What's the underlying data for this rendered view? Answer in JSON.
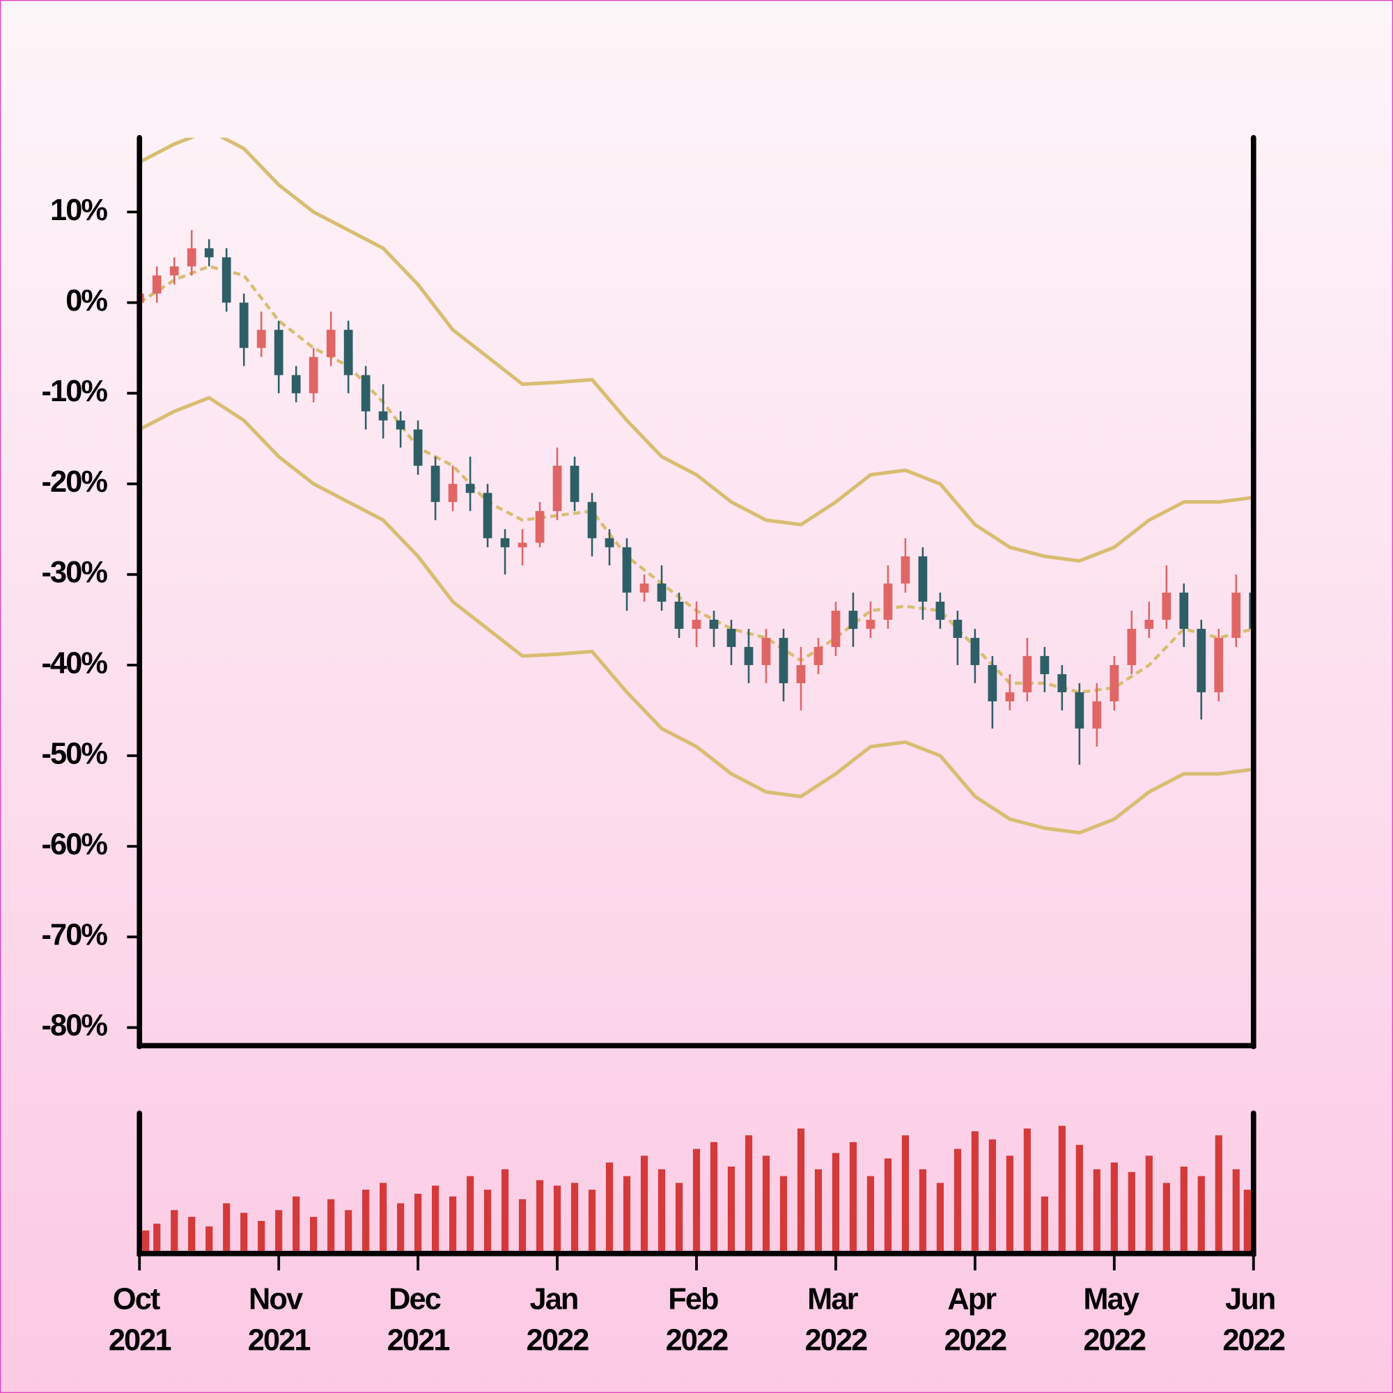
{
  "chart_data": {
    "type": "candlestick",
    "up_color": "#e06666",
    "down_color": "#2e5e66",
    "volume_color": "#d43a3a",
    "band_color": "#d8bd72",
    "xlim": [
      0,
      8
    ],
    "xticks": [
      {
        "value": 0,
        "label": "Oct 2021"
      },
      {
        "value": 1,
        "label": "Nov 2021"
      },
      {
        "value": 2,
        "label": "Dec 2021"
      },
      {
        "value": 3,
        "label": "Jan 2022"
      },
      {
        "value": 4,
        "label": "Feb 2022"
      },
      {
        "value": 5,
        "label": "Mar 2022"
      },
      {
        "value": 6,
        "label": "Apr 2022"
      },
      {
        "value": 7,
        "label": "May 2022"
      },
      {
        "value": 8,
        "label": "Jun 2022"
      }
    ],
    "ylim": [
      -81.8,
      18.2
    ],
    "yticks": [
      {
        "value": 10,
        "label": "10%"
      },
      {
        "value": 0,
        "label": "0%"
      },
      {
        "value": -10,
        "label": "-10%"
      },
      {
        "value": -20,
        "label": "-20%"
      },
      {
        "value": -30,
        "label": "-30%"
      },
      {
        "value": -40,
        "label": "-40%"
      },
      {
        "value": -50,
        "label": "-50%"
      },
      {
        "value": -60,
        "label": "-60%"
      },
      {
        "value": -70,
        "label": "-70%"
      },
      {
        "value": -80,
        "label": "-80%"
      }
    ],
    "volume_ylim": [
      0,
      100
    ],
    "x": [
      0,
      0.125,
      0.25,
      0.375,
      0.5,
      0.625,
      0.75,
      0.875,
      1,
      1.125,
      1.25,
      1.375,
      1.5,
      1.625,
      1.75,
      1.875,
      2,
      2.125,
      2.25,
      2.375,
      2.5,
      2.625,
      2.75,
      2.875,
      3,
      3.125,
      3.25,
      3.375,
      3.5,
      3.625,
      3.75,
      3.875,
      4,
      4.125,
      4.25,
      4.375,
      4.5,
      4.625,
      4.75,
      4.875,
      5,
      5.125,
      5.25,
      5.375,
      5.5,
      5.625,
      5.75,
      5.875,
      6,
      6.125,
      6.25,
      6.375,
      6.5,
      6.625,
      6.75,
      6.875,
      7,
      7.125,
      7.25,
      7.375,
      7.5,
      7.625,
      7.75,
      7.875,
      8
    ],
    "open": [
      0,
      1,
      3,
      4,
      6,
      5,
      0,
      -5,
      -3,
      -8,
      -10,
      -6,
      -3,
      -8,
      -12,
      -13,
      -14,
      -18,
      -22,
      -20,
      -21,
      -26,
      -27,
      -26.5,
      -23,
      -18,
      -22,
      -26,
      -27,
      -32,
      -31,
      -33,
      -36,
      -35,
      -36,
      -38,
      -40,
      -37,
      -42,
      -40,
      -38,
      -34,
      -36,
      -35,
      -31,
      -28,
      -33,
      -35,
      -37,
      -40,
      -44,
      -43,
      -39,
      -41,
      -43,
      -47,
      -44,
      -40,
      -36,
      -35,
      -32,
      -36,
      -43,
      -37,
      -32
    ],
    "high": [
      2,
      4,
      5,
      8,
      7,
      6,
      1,
      -1,
      -2,
      -7,
      -5,
      -1,
      -2,
      -7,
      -9,
      -12,
      -13,
      -17,
      -18,
      -17,
      -20,
      -25,
      -25,
      -22,
      -16,
      -17,
      -21,
      -25,
      -26,
      -30,
      -29,
      -32,
      -33,
      -34,
      -35,
      -36,
      -36,
      -36,
      -38,
      -37,
      -33,
      -32,
      -33,
      -29,
      -26,
      -27,
      -32,
      -34,
      -36,
      -39,
      -41,
      -37,
      -38,
      -40,
      -42,
      -42,
      -39,
      -34,
      -33,
      -29,
      -31,
      -35,
      -36,
      -30,
      -31
    ],
    "low": [
      -1,
      0,
      2,
      3,
      4,
      -1,
      -7,
      -6,
      -10,
      -11,
      -11,
      -7,
      -10,
      -14,
      -15,
      -16,
      -19,
      -24,
      -23,
      -23,
      -27,
      -30,
      -29,
      -27,
      -24,
      -23,
      -28,
      -29,
      -34,
      -33,
      -34,
      -37,
      -38,
      -38,
      -40,
      -42,
      -42,
      -44,
      -45,
      -41,
      -39,
      -38,
      -37,
      -36,
      -32,
      -35,
      -36,
      -40,
      -42,
      -47,
      -45,
      -44,
      -43,
      -45,
      -51,
      -49,
      -45,
      -41,
      -37,
      -36,
      -38,
      -46,
      -44,
      -38,
      -40
    ],
    "close": [
      1,
      3,
      4,
      6,
      5,
      0,
      -5,
      -3,
      -8,
      -10,
      -6,
      -3,
      -8,
      -12,
      -13,
      -14,
      -18,
      -22,
      -20,
      -21,
      -26,
      -27,
      -26.5,
      -23,
      -18,
      -22,
      -26,
      -27,
      -32,
      -31,
      -33,
      -36,
      -35,
      -36,
      -38,
      -40,
      -37,
      -42,
      -40,
      -38,
      -34,
      -36,
      -35,
      -31,
      -28,
      -33,
      -35,
      -37,
      -40,
      -44,
      -43,
      -39,
      -41,
      -43,
      -47,
      -44,
      -40,
      -36,
      -35,
      -32,
      -36,
      -43,
      -37,
      -32,
      -36
    ],
    "volume": [
      15,
      20,
      30,
      25,
      18,
      35,
      28,
      22,
      30,
      40,
      25,
      38,
      30,
      45,
      50,
      35,
      42,
      48,
      40,
      55,
      45,
      60,
      38,
      52,
      48,
      50,
      45,
      65,
      55,
      70,
      60,
      50,
      75,
      80,
      62,
      85,
      70,
      55,
      90,
      60,
      72,
      80,
      55,
      68,
      85,
      60,
      50,
      75,
      88,
      82,
      70,
      90,
      40,
      92,
      78,
      60,
      65,
      58,
      70,
      50,
      62,
      55,
      85,
      60,
      45
    ],
    "lines_x": [
      0,
      0.25,
      0.5,
      0.75,
      1,
      1.25,
      1.5,
      1.75,
      2,
      2.25,
      2.5,
      2.75,
      3,
      3.25,
      3.5,
      3.75,
      4,
      4.25,
      4.5,
      4.75,
      5,
      5.25,
      5.5,
      5.75,
      6,
      6.25,
      6.5,
      6.75,
      7,
      7.25,
      7.5,
      7.75,
      8
    ],
    "lines": [
      {
        "dashed": false,
        "values": [
          15.5,
          17.5,
          19,
          17,
          13,
          10,
          8,
          6,
          2,
          -3,
          -6,
          -9,
          -8.8,
          -8.5,
          -13,
          -17,
          -19,
          -22,
          -24,
          -24.5,
          -22,
          -19,
          -18.5,
          -20,
          -24.5,
          -27,
          -28,
          -28.5,
          -27,
          -24,
          -22,
          -22,
          -21.5
        ]
      },
      {
        "dashed": true,
        "values": [
          0,
          2.5,
          4,
          3,
          -2,
          -5,
          -7,
          -11,
          -16,
          -18,
          -22,
          -24,
          -23.5,
          -23,
          -28,
          -31,
          -34,
          -36,
          -37,
          -39.5,
          -37,
          -34,
          -33.5,
          -34,
          -38,
          -42,
          -42,
          -43,
          -42.5,
          -40,
          -36,
          -37,
          -36
        ]
      },
      {
        "dashed": false,
        "values": [
          -14,
          -12,
          -10.5,
          -13,
          -17,
          -20,
          -22,
          -24,
          -28,
          -33,
          -36,
          -39,
          -38.8,
          -38.5,
          -43,
          -47,
          -49,
          -52,
          -54,
          -54.5,
          -52,
          -49,
          -48.5,
          -50,
          -54.5,
          -57,
          -58,
          -58.5,
          -57,
          -54,
          -52,
          -52,
          -51.5
        ]
      }
    ]
  }
}
